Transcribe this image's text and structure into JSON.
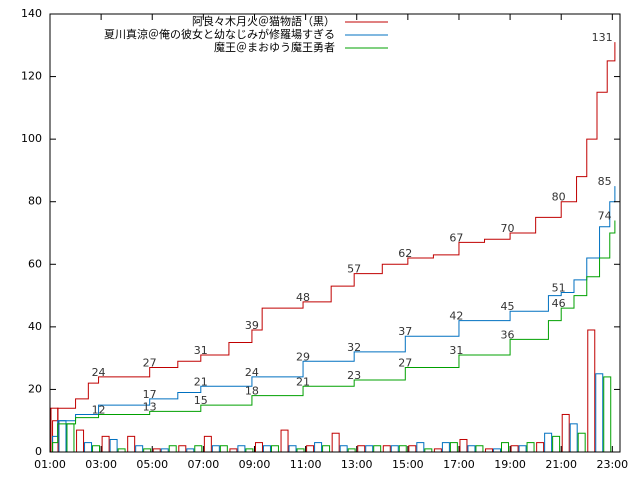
{
  "chart_data": {
    "type": "step",
    "xlim": [
      1,
      23.3
    ],
    "ylim": [
      0,
      140
    ],
    "xticks": [
      {
        "value": 1,
        "label": "01:00"
      },
      {
        "value": 3,
        "label": "03:00"
      },
      {
        "value": 5,
        "label": "05:00"
      },
      {
        "value": 7,
        "label": "07:00"
      },
      {
        "value": 9,
        "label": "09:00"
      },
      {
        "value": 11,
        "label": "11:00"
      },
      {
        "value": 13,
        "label": "13:00"
      },
      {
        "value": 15,
        "label": "15:00"
      },
      {
        "value": 17,
        "label": "17:00"
      },
      {
        "value": 19,
        "label": "19:00"
      },
      {
        "value": 21,
        "label": "21:00"
      },
      {
        "value": 23,
        "label": "23:00"
      }
    ],
    "yticks": [
      0,
      20,
      40,
      60,
      80,
      100,
      120,
      140
    ],
    "legend": "top",
    "hours": [
      1,
      2,
      3,
      4,
      5,
      6,
      7,
      8,
      9,
      10,
      11,
      12,
      13,
      14,
      15,
      16,
      17,
      18,
      19,
      20,
      21,
      22
    ],
    "series": [
      {
        "name": "阿良々木月火＠猫物語（黒）",
        "color": "#c00000",
        "x": [
          1,
          1.1,
          1.3,
          2,
          2.5,
          2.9,
          4.9,
          6,
          6.9,
          8,
          8.9,
          9.3,
          10,
          10.9,
          12,
          12.9,
          14,
          15,
          16,
          17,
          18,
          19,
          20,
          21,
          21.6,
          22,
          22.4,
          22.8,
          23.1
        ],
        "values": [
          0,
          10,
          14,
          17,
          22,
          24,
          27,
          29,
          31,
          35,
          39,
          46,
          46,
          48,
          53,
          57,
          60,
          62,
          63,
          67,
          68,
          70,
          75,
          80,
          88,
          100,
          115,
          125,
          131
        ],
        "point_labels": [
          {
            "x": 2.9,
            "value": 24
          },
          {
            "x": 4.9,
            "value": 27
          },
          {
            "x": 6.9,
            "value": 31
          },
          {
            "x": 8.9,
            "value": 39
          },
          {
            "x": 10.9,
            "value": 48
          },
          {
            "x": 12.9,
            "value": 57
          },
          {
            "x": 14.9,
            "value": 62
          },
          {
            "x": 16.9,
            "value": 67
          },
          {
            "x": 18.9,
            "value": 70
          },
          {
            "x": 20.9,
            "value": 80
          },
          {
            "x": 22.6,
            "value": 131
          }
        ],
        "hourly": [
          14,
          7,
          5,
          5,
          1,
          2,
          5,
          1,
          3,
          7,
          2,
          6,
          2,
          2,
          2,
          1,
          4,
          1,
          2,
          3,
          12,
          39
        ]
      },
      {
        "name": "夏川真涼＠俺の彼女と幼なじみが修羅場すぎる",
        "color": "#0070c0",
        "x": [
          1,
          1.1,
          1.3,
          2,
          2.9,
          4.9,
          6,
          6.9,
          8.9,
          10.9,
          12.9,
          14.9,
          17,
          19,
          20.5,
          21,
          21.5,
          22,
          22.5,
          22.9,
          23.1
        ],
        "values": [
          0,
          5,
          10,
          12,
          15,
          17,
          19,
          21,
          24,
          29,
          32,
          37,
          42,
          45,
          50,
          51,
          55,
          62,
          72,
          80,
          85
        ],
        "point_labels": [
          {
            "x": 4.9,
            "value": 17
          },
          {
            "x": 6.9,
            "value": 21
          },
          {
            "x": 8.9,
            "value": 24
          },
          {
            "x": 10.9,
            "value": 29
          },
          {
            "x": 12.9,
            "value": 32
          },
          {
            "x": 14.9,
            "value": 37
          },
          {
            "x": 16.9,
            "value": 42
          },
          {
            "x": 18.9,
            "value": 45
          },
          {
            "x": 20.9,
            "value": 51
          },
          {
            "x": 22.7,
            "value": 85
          }
        ],
        "hourly": [
          10,
          3,
          4,
          2,
          1,
          1,
          2,
          2,
          2,
          2,
          3,
          2,
          2,
          2,
          3,
          3,
          2,
          1,
          2,
          6,
          9,
          25
        ]
      },
      {
        "name": "魔王＠まおゆう魔王勇者",
        "color": "#00a000",
        "x": [
          1,
          1.1,
          1.3,
          2,
          2.9,
          4.9,
          6.9,
          8.9,
          10.9,
          12.9,
          14.9,
          17,
          19,
          20.5,
          21,
          21.5,
          22,
          22.5,
          22.9,
          23.1
        ],
        "values": [
          0,
          3,
          9,
          11,
          12,
          13,
          15,
          18,
          21,
          23,
          27,
          31,
          36,
          42,
          46,
          50,
          56,
          62,
          70,
          74
        ],
        "point_labels": [
          {
            "x": 2.9,
            "value": 12
          },
          {
            "x": 4.9,
            "value": 13
          },
          {
            "x": 6.9,
            "value": 15
          },
          {
            "x": 8.9,
            "value": 18
          },
          {
            "x": 10.9,
            "value": 21
          },
          {
            "x": 12.9,
            "value": 23
          },
          {
            "x": 14.9,
            "value": 27
          },
          {
            "x": 16.9,
            "value": 31
          },
          {
            "x": 18.9,
            "value": 36
          },
          {
            "x": 20.9,
            "value": 46
          },
          {
            "x": 22.7,
            "value": 74
          }
        ],
        "hourly": [
          9,
          2,
          1,
          1,
          2,
          2,
          2,
          1,
          2,
          1,
          2,
          1,
          2,
          2,
          1,
          3,
          2,
          3,
          3,
          5,
          6,
          24
        ]
      }
    ]
  }
}
